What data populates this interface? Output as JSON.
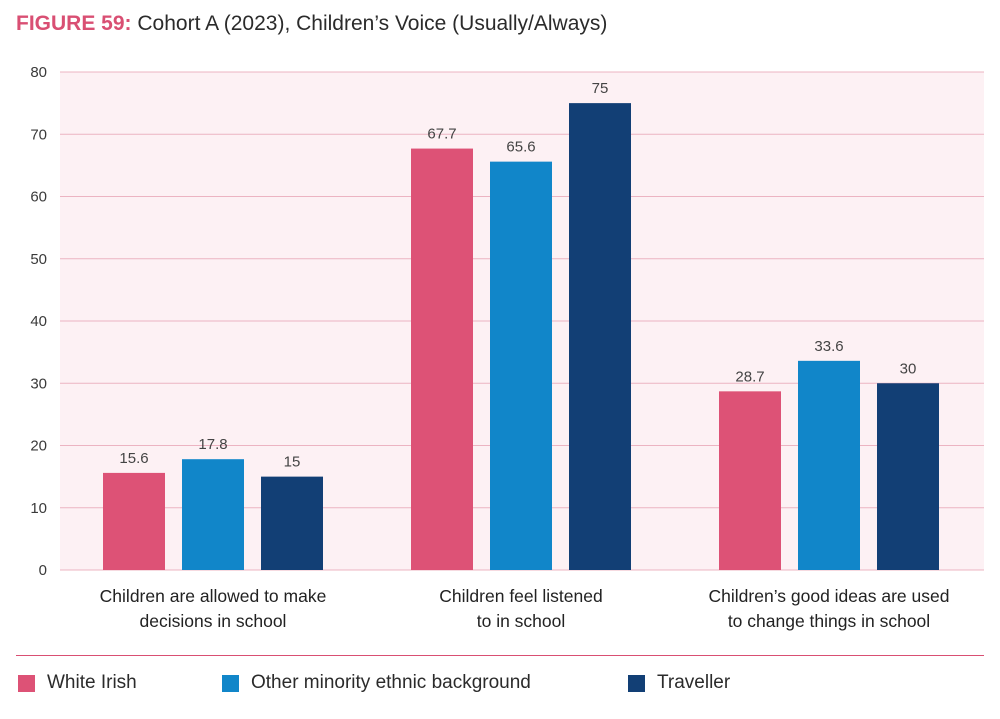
{
  "title": {
    "figure_label": "FIGURE 59:",
    "text": "Cohort A (2023), Children’s Voice (Usually/Always)"
  },
  "colors": {
    "plot_background": "#fdf1f4",
    "grid": "#ecb4c2",
    "accent": "#d94f73"
  },
  "chart_data": {
    "type": "bar",
    "title": "Cohort A (2023), Children’s Voice (Usually/Always)",
    "xlabel": "",
    "ylabel": "",
    "ylim": [
      0,
      80
    ],
    "yticks": [
      0,
      10,
      20,
      30,
      40,
      50,
      60,
      70,
      80
    ],
    "grid": true,
    "legend_position": "bottom",
    "categories": [
      [
        "Children are allowed to make",
        "decisions in school"
      ],
      [
        "Children feel listened",
        "to in school"
      ],
      [
        "Children’s good ideas are used",
        "to change things in school"
      ]
    ],
    "series": [
      {
        "name": "White Irish",
        "color": "#dd5276",
        "values": [
          15.6,
          67.7,
          28.7
        ],
        "labels": [
          "15.6",
          "67.7",
          "28.7"
        ]
      },
      {
        "name": "Other minority ethnic background",
        "color": "#1186c9",
        "values": [
          17.8,
          65.6,
          33.6
        ],
        "labels": [
          "17.8",
          "65.6",
          "33.6"
        ]
      },
      {
        "name": "Traveller",
        "color": "#123f75",
        "values": [
          15,
          75,
          30
        ],
        "labels": [
          "15",
          "75",
          "30"
        ]
      }
    ]
  }
}
